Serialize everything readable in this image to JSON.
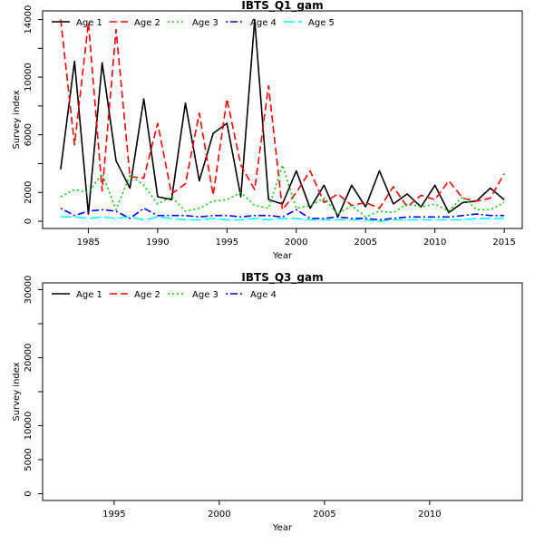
{
  "chart_data": [
    {
      "type": "line",
      "title": "IBTS_Q1_gam",
      "xlabel": "Year",
      "ylabel": "Survey index",
      "xlim": [
        1981.7,
        2016.3
      ],
      "ylim": [
        -500,
        14600
      ],
      "xticks": [
        1985,
        1990,
        1995,
        2000,
        2005,
        2010,
        2015
      ],
      "yticks": [
        0,
        2000,
        6000,
        10000,
        14000
      ],
      "y_minor_ticks": [
        4000,
        8000,
        12000
      ],
      "legend_position": "top-left",
      "series": [
        {
          "name": "Age 1",
          "color": "#000000",
          "dash": "solid",
          "x": [
            1983,
            1984,
            1985,
            1986,
            1987,
            1988,
            1989,
            1990,
            1991,
            1992,
            1993,
            1994,
            1995,
            1996,
            1997,
            1998,
            1999,
            2000,
            2001,
            2002,
            2003,
            2004,
            2005,
            2006,
            2007,
            2008,
            2009,
            2010,
            2011,
            2012,
            2013,
            2014,
            2015
          ],
          "y": [
            3600,
            11100,
            500,
            11000,
            4200,
            2300,
            8500,
            1700,
            1500,
            8200,
            2800,
            6100,
            6800,
            1700,
            14000,
            1500,
            1200,
            3500,
            900,
            2500,
            300,
            2500,
            1000,
            3500,
            1200,
            1900,
            1000,
            2500,
            600,
            1300,
            1400,
            2300,
            1500
          ]
        },
        {
          "name": "Age 2",
          "color": "#ff0000",
          "dash": "dash",
          "x": [
            1983,
            1984,
            1985,
            1986,
            1987,
            1988,
            1989,
            1990,
            1991,
            1992,
            1993,
            1994,
            1995,
            1996,
            1997,
            1998,
            1999,
            2000,
            2001,
            2002,
            2003,
            2004,
            2005,
            2006,
            2007,
            2008,
            2009,
            2010,
            2011,
            2012,
            2013,
            2014,
            2015
          ],
          "y": [
            14000,
            5300,
            13800,
            2100,
            13300,
            3100,
            3000,
            6800,
            1900,
            2600,
            7500,
            1800,
            8500,
            3900,
            2200,
            9400,
            800,
            2000,
            3500,
            1300,
            1900,
            1100,
            1300,
            900,
            2400,
            1000,
            1800,
            1500,
            2800,
            1600,
            1400,
            1600,
            3300
          ]
        },
        {
          "name": "Age 3",
          "color": "#00cd00",
          "dash": "dot",
          "x": [
            1983,
            1984,
            1985,
            1986,
            1987,
            1988,
            1989,
            1990,
            1991,
            1992,
            1993,
            1994,
            1995,
            1996,
            1997,
            1998,
            1999,
            2000,
            2001,
            2002,
            2003,
            2004,
            2005,
            2006,
            2007,
            2008,
            2009,
            2010,
            2011,
            2012,
            2013,
            2014,
            2015
          ],
          "y": [
            1700,
            2200,
            2000,
            3300,
            800,
            3200,
            2500,
            1200,
            1700,
            700,
            900,
            1400,
            1500,
            2000,
            1100,
            900,
            3900,
            900,
            1100,
            1600,
            500,
            1100,
            300,
            700,
            600,
            1200,
            1000,
            1200,
            700,
            1700,
            800,
            800,
            1300
          ]
        },
        {
          "name": "Age 4",
          "color": "#0000ff",
          "dash": "dashdot",
          "x": [
            1983,
            1984,
            1985,
            1986,
            1987,
            1988,
            1989,
            1990,
            1991,
            1992,
            1993,
            1994,
            1995,
            1996,
            1997,
            1998,
            1999,
            2000,
            2001,
            2002,
            2003,
            2004,
            2005,
            2006,
            2007,
            2008,
            2009,
            2010,
            2011,
            2012,
            2013,
            2014,
            2015
          ],
          "y": [
            900,
            400,
            700,
            800,
            700,
            200,
            900,
            400,
            400,
            400,
            300,
            400,
            400,
            300,
            400,
            400,
            300,
            800,
            200,
            200,
            300,
            200,
            200,
            100,
            200,
            300,
            300,
            300,
            300,
            400,
            500,
            400,
            400
          ]
        },
        {
          "name": "Age 5",
          "color": "#00ffff",
          "dash": "longdash",
          "x": [
            1983,
            1984,
            1985,
            1986,
            1987,
            1988,
            1989,
            1990,
            1991,
            1992,
            1993,
            1994,
            1995,
            1996,
            1997,
            1998,
            1999,
            2000,
            2001,
            2002,
            2003,
            2004,
            2005,
            2006,
            2007,
            2008,
            2009,
            2010,
            2011,
            2012,
            2013,
            2014,
            2015
          ],
          "y": [
            300,
            300,
            200,
            300,
            200,
            300,
            100,
            300,
            200,
            100,
            100,
            200,
            100,
            100,
            200,
            100,
            200,
            200,
            100,
            100,
            100,
            100,
            100,
            0,
            100,
            100,
            100,
            100,
            100,
            100,
            200,
            200,
            200
          ]
        }
      ]
    },
    {
      "type": "line",
      "title": "IBTS_Q3_gam",
      "xlabel": "Year",
      "ylabel": "Survey index",
      "xlim": [
        1991.6,
        2014.4
      ],
      "ylim": [
        -1000,
        31000
      ],
      "xticks": [
        1995,
        2000,
        2005,
        2010
      ],
      "yticks": [
        0,
        5000,
        10000,
        20000,
        30000
      ],
      "y_minor_ticks": [
        15000,
        25000
      ],
      "legend_position": "top-left",
      "series": [
        {
          "name": "Age 1",
          "color": "#000000",
          "dash": "solid",
          "x": [],
          "y": []
        },
        {
          "name": "Age 2",
          "color": "#ff0000",
          "dash": "dash",
          "x": [],
          "y": []
        },
        {
          "name": "Age 3",
          "color": "#00cd00",
          "dash": "dot",
          "x": [],
          "y": []
        },
        {
          "name": "Age 4",
          "color": "#0000ff",
          "dash": "dashdot",
          "x": [],
          "y": []
        }
      ]
    }
  ]
}
